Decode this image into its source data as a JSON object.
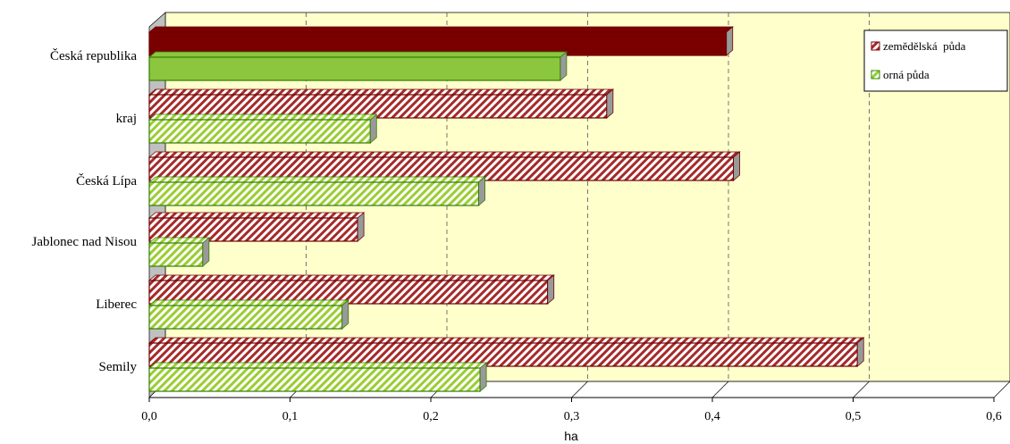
{
  "chart_data": {
    "type": "bar",
    "orientation": "horizontal",
    "title": "",
    "xlabel": "ha",
    "ylabel": "",
    "xlim": [
      0,
      0.6
    ],
    "x_ticks": [
      "0,0",
      "0,1",
      "0,2",
      "0,3",
      "0,4",
      "0,5",
      "0,6"
    ],
    "categories": [
      "Česká republika",
      "kraj",
      "Česká Lípa",
      "Jablonec nad Nisou",
      "Liberec",
      "Semily"
    ],
    "series": [
      {
        "name": "zemědělská  půda",
        "values": [
          0.41,
          0.325,
          0.415,
          0.148,
          0.283,
          0.503
        ],
        "color": "#8B1A1A"
      },
      {
        "name": "orná půda",
        "values": [
          0.292,
          0.157,
          0.234,
          0.038,
          0.137,
          0.235
        ],
        "color": "#8CC63F"
      }
    ],
    "highlight": {
      "category": "Česká republika",
      "dark_color": "#7A0000",
      "light_color": "#8CC63F"
    },
    "plot_background": "#FFFFCC",
    "grid": "vertical dashed",
    "legend_position": "top-right"
  }
}
